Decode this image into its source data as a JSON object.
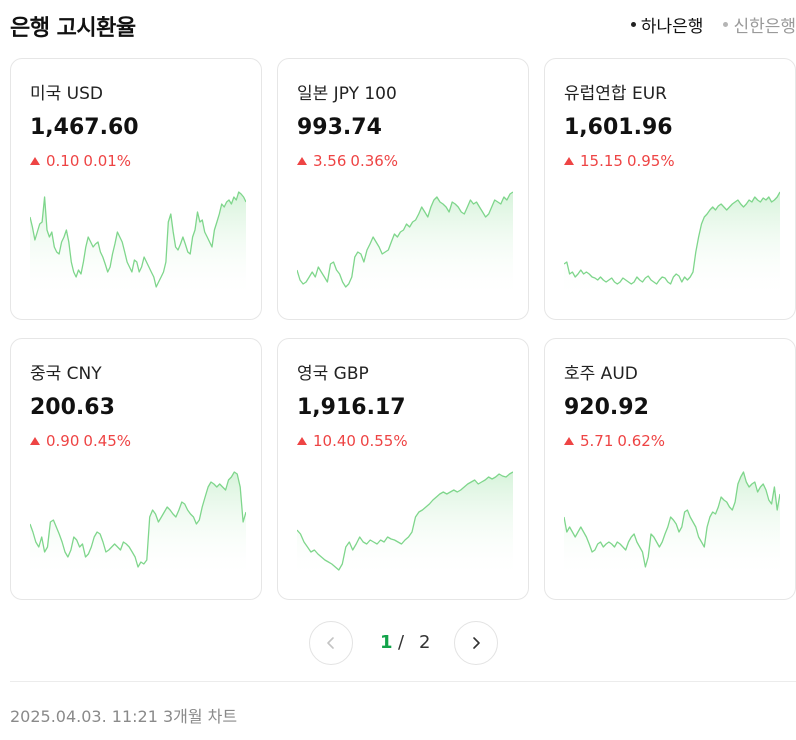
{
  "header": {
    "title": "은행 고시환율",
    "banks": [
      {
        "label": "하나은행",
        "active": true
      },
      {
        "label": "신한은행",
        "active": false
      }
    ]
  },
  "cards": [
    {
      "name": "미국 USD",
      "price": "1,467.60",
      "change": "0.10",
      "pct": "0.01%",
      "direction": "up",
      "sparkline": [
        0.75,
        0.65,
        0.52,
        0.6,
        0.68,
        0.7,
        0.95,
        0.62,
        0.55,
        0.6,
        0.45,
        0.4,
        0.38,
        0.5,
        0.55,
        0.62,
        0.5,
        0.3,
        0.2,
        0.15,
        0.22,
        0.18,
        0.3,
        0.45,
        0.55,
        0.5,
        0.45,
        0.48,
        0.5,
        0.4,
        0.35,
        0.28,
        0.2,
        0.25,
        0.38,
        0.48,
        0.6,
        0.55,
        0.5,
        0.4,
        0.3,
        0.25,
        0.2,
        0.32,
        0.3,
        0.2,
        0.25,
        0.35,
        0.3,
        0.25,
        0.2,
        0.15,
        0.05,
        0.1,
        0.15,
        0.2,
        0.3,
        0.7,
        0.78,
        0.6,
        0.45,
        0.42,
        0.48,
        0.55,
        0.48,
        0.4,
        0.38,
        0.55,
        0.62,
        0.8,
        0.7,
        0.72,
        0.6,
        0.55,
        0.5,
        0.45,
        0.62,
        0.7,
        0.78,
        0.88,
        0.85,
        0.9,
        0.92,
        0.88,
        0.95,
        0.92,
        1.0,
        0.98,
        0.95,
        0.9
      ]
    },
    {
      "name": "일본 JPY 100",
      "price": "993.74",
      "change": "3.56",
      "pct": "0.36%",
      "direction": "up",
      "sparkline": [
        0.22,
        0.12,
        0.08,
        0.1,
        0.15,
        0.2,
        0.15,
        0.25,
        0.2,
        0.15,
        0.1,
        0.28,
        0.3,
        0.22,
        0.18,
        0.1,
        0.05,
        0.08,
        0.15,
        0.35,
        0.4,
        0.38,
        0.3,
        0.42,
        0.48,
        0.55,
        0.5,
        0.45,
        0.38,
        0.4,
        0.42,
        0.5,
        0.58,
        0.55,
        0.6,
        0.62,
        0.68,
        0.65,
        0.7,
        0.72,
        0.78,
        0.85,
        0.8,
        0.75,
        0.85,
        0.92,
        0.95,
        0.9,
        0.88,
        0.85,
        0.8,
        0.9,
        0.88,
        0.85,
        0.8,
        0.78,
        0.85,
        0.92,
        0.88,
        0.9,
        0.85,
        0.8,
        0.75,
        0.78,
        0.85,
        0.92,
        0.9,
        0.88,
        0.95,
        0.92,
        0.98,
        1.0
      ]
    },
    {
      "name": "유럽연합 EUR",
      "price": "1,601.96",
      "change": "15.15",
      "pct": "0.95%",
      "direction": "up",
      "sparkline": [
        0.28,
        0.3,
        0.18,
        0.2,
        0.15,
        0.18,
        0.22,
        0.18,
        0.2,
        0.18,
        0.15,
        0.14,
        0.12,
        0.15,
        0.12,
        0.1,
        0.12,
        0.14,
        0.1,
        0.08,
        0.1,
        0.14,
        0.12,
        0.1,
        0.08,
        0.1,
        0.15,
        0.12,
        0.1,
        0.14,
        0.16,
        0.12,
        0.1,
        0.08,
        0.12,
        0.15,
        0.14,
        0.1,
        0.08,
        0.15,
        0.18,
        0.16,
        0.1,
        0.15,
        0.12,
        0.15,
        0.2,
        0.4,
        0.55,
        0.68,
        0.75,
        0.78,
        0.82,
        0.85,
        0.82,
        0.86,
        0.88,
        0.85,
        0.82,
        0.85,
        0.88,
        0.9,
        0.92,
        0.88,
        0.85,
        0.88,
        0.92,
        0.9,
        0.95,
        0.92,
        0.9,
        0.94,
        0.92,
        0.95,
        0.9,
        0.92,
        0.95,
        1.0
      ]
    },
    {
      "name": "중국 CNY",
      "price": "200.63",
      "change": "0.90",
      "pct": "0.45%",
      "direction": "up",
      "sparkline": [
        0.48,
        0.4,
        0.3,
        0.25,
        0.35,
        0.2,
        0.25,
        0.5,
        0.52,
        0.45,
        0.38,
        0.3,
        0.2,
        0.15,
        0.22,
        0.35,
        0.32,
        0.25,
        0.28,
        0.15,
        0.18,
        0.25,
        0.35,
        0.4,
        0.38,
        0.3,
        0.2,
        0.22,
        0.25,
        0.28,
        0.25,
        0.22,
        0.3,
        0.28,
        0.25,
        0.2,
        0.15,
        0.05,
        0.1,
        0.08,
        0.12,
        0.55,
        0.62,
        0.58,
        0.5,
        0.55,
        0.6,
        0.65,
        0.62,
        0.58,
        0.55,
        0.62,
        0.7,
        0.68,
        0.62,
        0.58,
        0.55,
        0.48,
        0.52,
        0.65,
        0.75,
        0.85,
        0.9,
        0.88,
        0.85,
        0.88,
        0.85,
        0.82,
        0.92,
        0.95,
        1.0,
        0.98,
        0.85,
        0.5,
        0.6
      ]
    },
    {
      "name": "영국 GBP",
      "price": "1,916.17",
      "change": "10.40",
      "pct": "0.55%",
      "direction": "up",
      "sparkline": [
        0.42,
        0.38,
        0.3,
        0.25,
        0.2,
        0.22,
        0.18,
        0.15,
        0.12,
        0.1,
        0.08,
        0.05,
        0.02,
        0.08,
        0.25,
        0.3,
        0.22,
        0.28,
        0.35,
        0.3,
        0.28,
        0.32,
        0.3,
        0.28,
        0.32,
        0.3,
        0.35,
        0.33,
        0.32,
        0.3,
        0.28,
        0.32,
        0.35,
        0.4,
        0.55,
        0.6,
        0.62,
        0.65,
        0.68,
        0.72,
        0.75,
        0.78,
        0.8,
        0.78,
        0.8,
        0.82,
        0.8,
        0.82,
        0.85,
        0.88,
        0.9,
        0.92,
        0.88,
        0.9,
        0.92,
        0.95,
        0.93,
        0.95,
        0.98,
        0.96,
        0.95,
        0.98,
        1.0
      ]
    },
    {
      "name": "호주 AUD",
      "price": "920.92",
      "change": "5.71",
      "pct": "0.62%",
      "direction": "up",
      "sparkline": [
        0.55,
        0.4,
        0.45,
        0.4,
        0.35,
        0.4,
        0.45,
        0.4,
        0.35,
        0.28,
        0.2,
        0.22,
        0.28,
        0.3,
        0.25,
        0.28,
        0.3,
        0.28,
        0.25,
        0.3,
        0.28,
        0.25,
        0.22,
        0.3,
        0.35,
        0.38,
        0.3,
        0.25,
        0.2,
        0.05,
        0.15,
        0.38,
        0.35,
        0.3,
        0.25,
        0.3,
        0.38,
        0.45,
        0.55,
        0.52,
        0.48,
        0.4,
        0.45,
        0.6,
        0.62,
        0.55,
        0.5,
        0.45,
        0.35,
        0.3,
        0.25,
        0.45,
        0.55,
        0.6,
        0.58,
        0.65,
        0.75,
        0.72,
        0.7,
        0.65,
        0.62,
        0.7,
        0.88,
        0.95,
        1.0,
        0.9,
        0.85,
        0.88,
        0.9,
        0.8,
        0.85,
        0.88,
        0.82,
        0.72,
        0.68,
        0.85,
        0.62,
        0.78
      ]
    }
  ],
  "pagination": {
    "current": "1",
    "separator": "/",
    "total": "2"
  },
  "footer": {
    "text": "2025.04.03. 11:21 3개월 차트"
  },
  "colors": {
    "up": "#ee4444",
    "line": "#7fd68c",
    "fill_top": "#d6f3da",
    "active_page": "#12a34a"
  }
}
